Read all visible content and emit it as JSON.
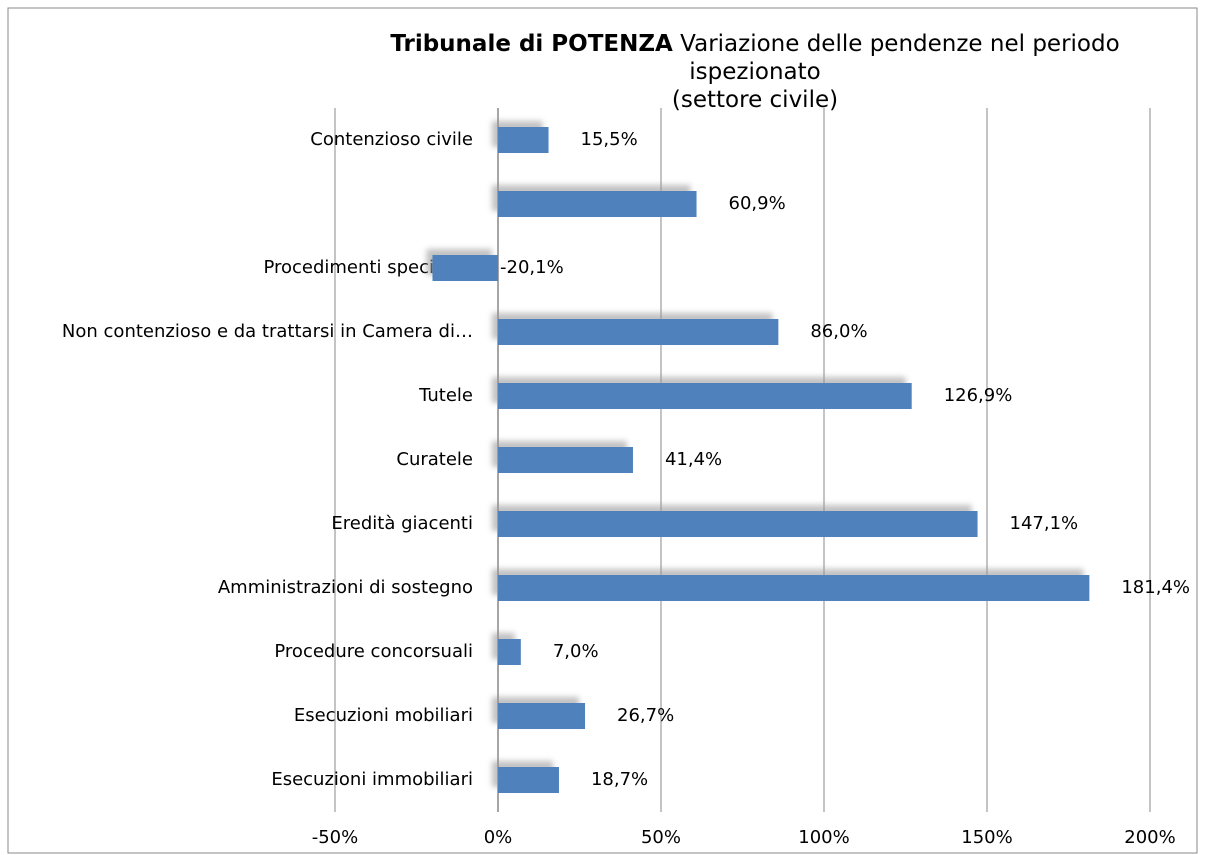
{
  "chart_data": {
    "type": "barh",
    "title_bold": "Tribunale di POTENZA",
    "title": "Variazione delle pendenze nel periodo ispezionato",
    "subtitle": "(settore civile)",
    "categories": [
      "Contenzioso civile",
      null,
      "Procedimenti speciali…",
      "Non contenzioso e da trattarsi in Camera di…",
      "Tutele",
      "Curatele",
      "Eredità giacenti",
      "Amministrazioni di sostegno",
      "Procedure concorsuali",
      "Esecuzioni mobiliari",
      "Esecuzioni immobiliari"
    ],
    "values": [
      15.5,
      60.9,
      -20.1,
      86.0,
      126.9,
      41.4,
      147.1,
      181.4,
      7.0,
      26.7,
      18.7
    ],
    "value_labels": [
      "15,5%",
      "60,9%",
      "-20,1%",
      "86,0%",
      "126,9%",
      "41,4%",
      "147,1%",
      "181,4%",
      "7,0%",
      "26,7%",
      "18,7%"
    ],
    "color": "#4f81bd",
    "xlim": [
      -50,
      200
    ],
    "xticks": [
      {
        "value": -50,
        "label": "-50%"
      },
      {
        "value": 0,
        "label": "0%"
      },
      {
        "value": 50,
        "label": "50%"
      },
      {
        "value": 100,
        "label": "100%"
      },
      {
        "value": 150,
        "label": "150%"
      },
      {
        "value": 200,
        "label": "200%"
      }
    ],
    "grid": true
  }
}
